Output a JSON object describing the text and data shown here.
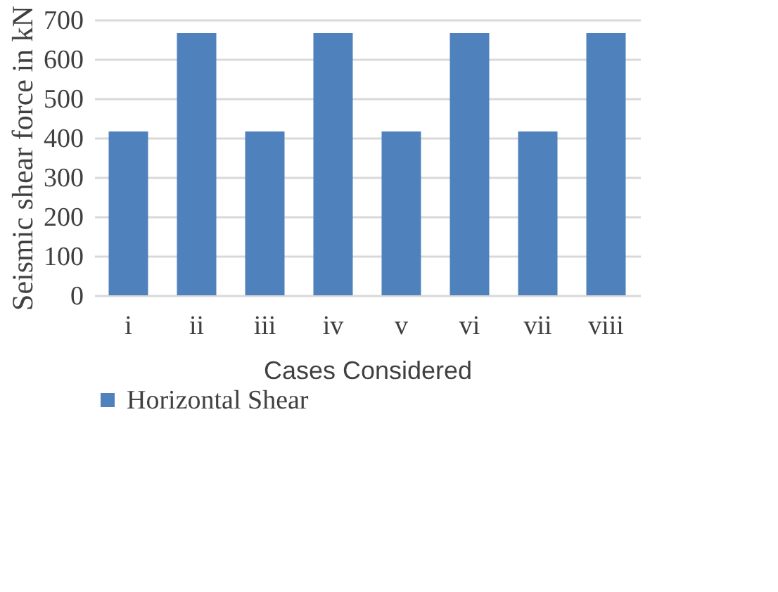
{
  "chart_data": {
    "type": "bar",
    "xlabel": "Cases Considered",
    "ylabel": "Seismic shear force in kN",
    "categories": [
      "i",
      "ii",
      "iii",
      "iv",
      "v",
      "vi",
      "vii",
      "viii"
    ],
    "series": [
      {
        "name": "Horizontal Shear",
        "color": "#4f81bd",
        "values": [
          416,
          666,
          416,
          666,
          416,
          666,
          416,
          666
        ]
      }
    ],
    "ylim": [
      0,
      700
    ],
    "yticks": [
      0,
      100,
      200,
      300,
      400,
      500,
      600,
      700
    ],
    "grid": "y",
    "legend": "bottom"
  }
}
